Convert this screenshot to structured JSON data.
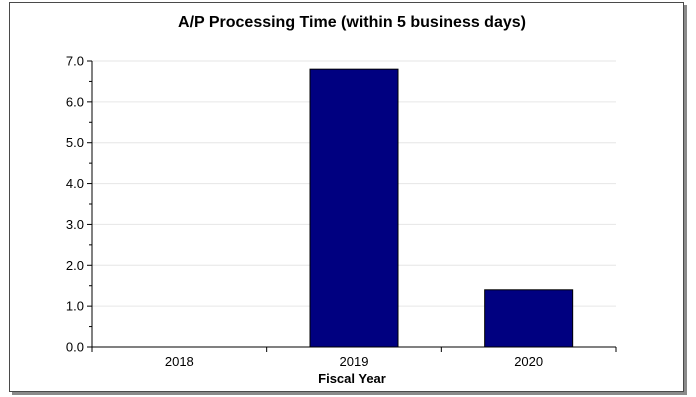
{
  "chart_data": {
    "type": "bar",
    "title": "A/P Processing Time (within 5 business days)",
    "xlabel": "Fiscal Year",
    "ylabel": "",
    "categories": [
      "2018",
      "2019",
      "2020"
    ],
    "values": [
      0,
      6.8,
      1.4
    ],
    "ylim": [
      0,
      7
    ],
    "yticks": [
      "0.0",
      "1.0",
      "2.0",
      "3.0",
      "4.0",
      "5.0",
      "6.0",
      "7.0"
    ],
    "grid": true,
    "colors": {
      "bar": "#000080",
      "bar_border": "#000000",
      "grid": "#e6e6e6",
      "axis": "#000000"
    }
  }
}
